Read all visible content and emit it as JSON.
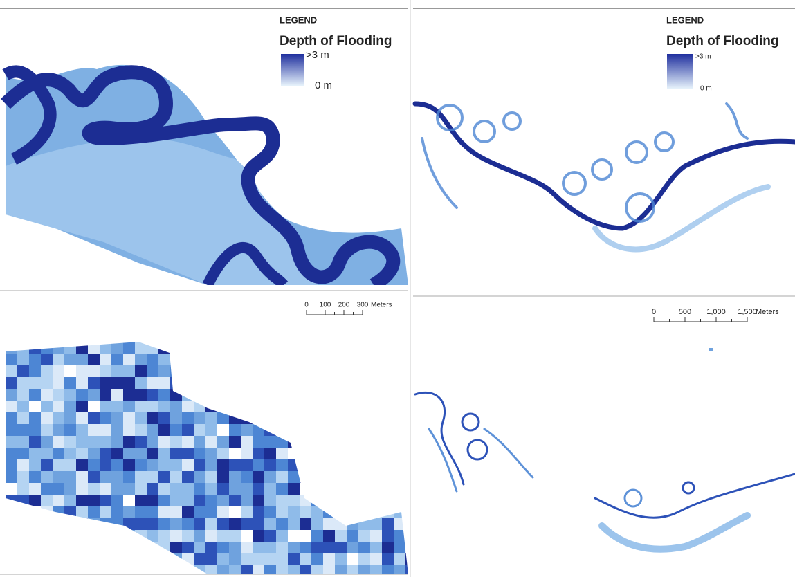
{
  "panels": [
    {
      "legend": {
        "title": "LEGEND",
        "subtitle": "Depth of Flooding",
        "max_label": ">3 m",
        "min_label": "0 m"
      }
    },
    {
      "legend": {
        "title": "LEGEND",
        "subtitle": "Depth of Flooding",
        "max_label": ">3 m",
        "min_label": "0 m"
      }
    },
    {
      "scale_bar": {
        "labels": [
          "0",
          "100",
          "200",
          "300"
        ],
        "unit": "Meters"
      }
    },
    {
      "scale_bar": {
        "labels": [
          "0",
          "500",
          "1,000",
          "1,500"
        ],
        "unit": "Meters"
      }
    }
  ]
}
